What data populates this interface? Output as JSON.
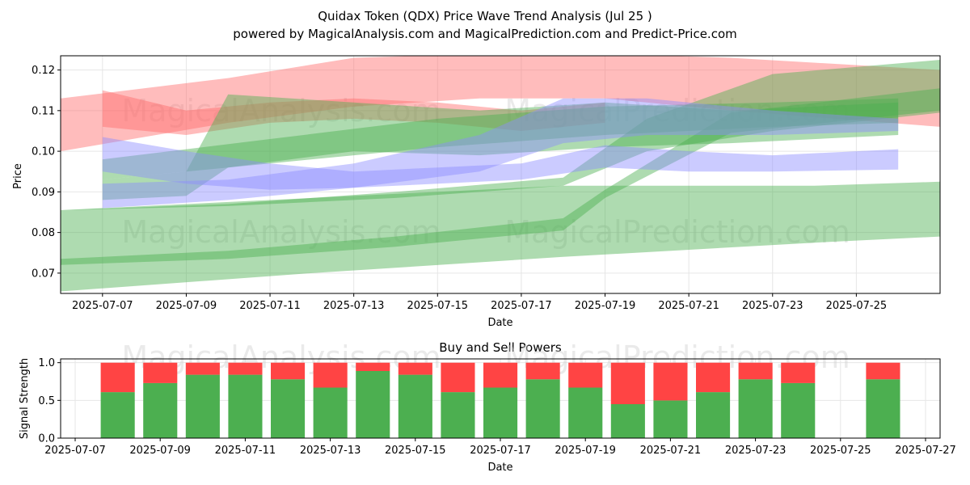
{
  "title": "Quidax Token (QDX) Price Wave Trend Analysis (Jul 25 )",
  "subtitle": "powered by MagicalAnalysis.com and MagicalPrediction.com and Predict-Price.com",
  "watermarks": [
    "MagicalAnalysis.com",
    "MagicalPrediction.com"
  ],
  "colors": {
    "red": "#ff6b6b",
    "green": "#4caf50",
    "blue": "#8c8cff",
    "buy": "#4caf50",
    "sell": "#ff4444"
  },
  "chart_data": [
    {
      "type": "area",
      "title": "",
      "xlabel": "Date",
      "ylabel": "Price",
      "ylim": [
        0.065,
        0.1235
      ],
      "xlim": [
        "2025-07-06",
        "2025-07-27"
      ],
      "yticks": [
        "0.07",
        "0.08",
        "0.09",
        "0.10",
        "0.11",
        "0.12"
      ],
      "xticks": [
        "2025-07-07",
        "2025-07-09",
        "2025-07-11",
        "2025-07-13",
        "2025-07-15",
        "2025-07-17",
        "2025-07-19",
        "2025-07-21",
        "2025-07-23",
        "2025-07-25"
      ],
      "grid": true,
      "bands": [
        {
          "color": "red",
          "x": [
            "2025-07-06",
            "2025-07-10",
            "2025-07-13",
            "2025-07-16",
            "2025-07-19",
            "2025-07-22",
            "2025-07-27"
          ],
          "upper": [
            0.113,
            0.118,
            0.123,
            0.124,
            0.124,
            0.123,
            0.12
          ],
          "lower": [
            0.1,
            0.107,
            0.111,
            0.113,
            0.113,
            0.11,
            0.106
          ]
        },
        {
          "color": "red",
          "x": [
            "2025-07-07",
            "2025-07-09",
            "2025-07-11",
            "2025-07-13",
            "2025-07-15",
            "2025-07-17",
            "2025-07-19"
          ],
          "upper": [
            0.115,
            0.11,
            0.112,
            0.113,
            0.112,
            0.11,
            0.112
          ],
          "lower": [
            0.106,
            0.104,
            0.107,
            0.108,
            0.107,
            0.105,
            0.107
          ]
        },
        {
          "color": "green",
          "x": [
            "2025-07-06",
            "2025-07-10",
            "2025-07-14",
            "2025-07-18",
            "2025-07-19",
            "2025-07-22",
            "2025-07-27"
          ],
          "upper": [
            0.0735,
            0.0755,
            0.079,
            0.0835,
            0.0905,
            0.1095,
            0.1155
          ],
          "lower": [
            0.072,
            0.0735,
            0.0765,
            0.0805,
            0.0885,
            0.1045,
            0.11
          ]
        },
        {
          "color": "green",
          "x": [
            "2025-07-06",
            "2025-07-10",
            "2025-07-14",
            "2025-07-18",
            "2025-07-20",
            "2025-07-23",
            "2025-07-27"
          ],
          "upper": [
            0.0855,
            0.087,
            0.09,
            0.0935,
            0.108,
            0.119,
            0.1225
          ],
          "lower": [
            0.0855,
            0.0865,
            0.0885,
            0.0915,
            0.1,
            0.105,
            0.1095
          ]
        },
        {
          "color": "green",
          "x": [
            "2025-07-06",
            "2025-07-12",
            "2025-07-18",
            "2025-07-24",
            "2025-07-27"
          ],
          "upper": [
            0.0855,
            0.0885,
            0.0915,
            0.0915,
            0.0925
          ],
          "lower": [
            0.0655,
            0.07,
            0.074,
            0.0775,
            0.079
          ]
        },
        {
          "color": "green",
          "x": [
            "2025-07-07",
            "2025-07-09",
            "2025-07-10",
            "2025-07-13",
            "2025-07-16",
            "2025-07-19",
            "2025-07-22",
            "2025-07-26"
          ],
          "upper": [
            0.093,
            0.095,
            0.114,
            0.112,
            0.11,
            0.112,
            0.11,
            0.112
          ],
          "lower": [
            0.088,
            0.089,
            0.096,
            0.1,
            0.099,
            0.101,
            0.102,
            0.104
          ]
        },
        {
          "color": "green",
          "x": [
            "2025-07-07",
            "2025-07-11",
            "2025-07-15",
            "2025-07-19",
            "2025-07-23",
            "2025-07-26"
          ],
          "upper": [
            0.098,
            0.103,
            0.108,
            0.111,
            0.112,
            0.113
          ],
          "lower": [
            0.093,
            0.097,
            0.101,
            0.104,
            0.106,
            0.107
          ]
        },
        {
          "color": "blue",
          "x": [
            "2025-07-07",
            "2025-07-09",
            "2025-07-11",
            "2025-07-13",
            "2025-07-15",
            "2025-07-17",
            "2025-07-19",
            "2025-07-21",
            "2025-07-23",
            "2025-07-26"
          ],
          "upper": [
            0.1035,
            0.1,
            0.097,
            0.095,
            0.096,
            0.097,
            0.1015,
            0.1,
            0.099,
            0.1005
          ],
          "lower": [
            0.095,
            0.092,
            0.0905,
            0.091,
            0.092,
            0.093,
            0.096,
            0.095,
            0.095,
            0.0955
          ]
        },
        {
          "color": "blue",
          "x": [
            "2025-07-07",
            "2025-07-10",
            "2025-07-13",
            "2025-07-16",
            "2025-07-18",
            "2025-07-20",
            "2025-07-23",
            "2025-07-26"
          ],
          "upper": [
            0.092,
            0.093,
            0.097,
            0.104,
            0.113,
            0.113,
            0.11,
            0.108
          ],
          "lower": [
            0.086,
            0.088,
            0.091,
            0.095,
            0.102,
            0.104,
            0.104,
            0.105
          ]
        }
      ]
    },
    {
      "type": "bar",
      "title": "Buy and Sell Powers",
      "xlabel": "Date",
      "ylabel": "Signal Strength",
      "ylim": [
        0,
        1.05
      ],
      "xlim": [
        "2025-07-07",
        "2025-07-27"
      ],
      "yticks": [
        "0.0",
        "0.5",
        "1.0"
      ],
      "xticks": [
        "2025-07-07",
        "2025-07-09",
        "2025-07-11",
        "2025-07-13",
        "2025-07-15",
        "2025-07-17",
        "2025-07-19",
        "2025-07-21",
        "2025-07-23",
        "2025-07-25",
        "2025-07-27"
      ],
      "grid": true,
      "categories": [
        "2025-07-08",
        "2025-07-09",
        "2025-07-10",
        "2025-07-11",
        "2025-07-12",
        "2025-07-13",
        "2025-07-14",
        "2025-07-15",
        "2025-07-16",
        "2025-07-17",
        "2025-07-18",
        "2025-07-19",
        "2025-07-20",
        "2025-07-21",
        "2025-07-22",
        "2025-07-23",
        "2025-07-24",
        "2025-07-26"
      ],
      "series": [
        {
          "role": "buy",
          "values": [
            0.61,
            0.73,
            0.84,
            0.84,
            0.78,
            0.67,
            0.89,
            0.84,
            0.61,
            0.67,
            0.78,
            0.67,
            0.45,
            0.5,
            0.61,
            0.78,
            0.73,
            0.78
          ]
        },
        {
          "role": "sell",
          "values": [
            0.39,
            0.27,
            0.16,
            0.16,
            0.22,
            0.33,
            0.11,
            0.16,
            0.39,
            0.33,
            0.22,
            0.33,
            0.55,
            0.5,
            0.39,
            0.22,
            0.27,
            0.22
          ]
        }
      ]
    }
  ]
}
